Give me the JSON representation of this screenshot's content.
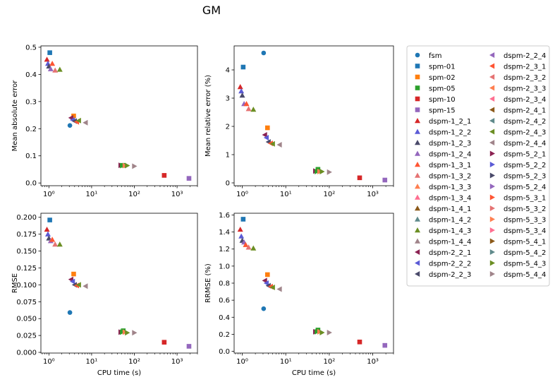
{
  "figure_title": "GM",
  "chart_data": [
    {
      "type": "scatter",
      "xlabel": "",
      "ylabel": "Mean absolute error",
      "xscale": "log",
      "xlim": [
        0.65,
        3000
      ],
      "ylim": [
        -0.01,
        0.505
      ],
      "yticks": [
        "0.0",
        "0.1",
        "0.2",
        "0.3",
        "0.4",
        "0.5"
      ],
      "ytick_values": [
        0,
        0.1,
        0.2,
        0.3,
        0.4,
        0.5
      ],
      "xticks": [
        "10⁰",
        "10¹",
        "10²",
        "10³"
      ],
      "series": [
        {
          "name": "fsm",
          "points": [
            [
              3.1,
              0.212
            ]
          ]
        },
        {
          "name": "spm-01",
          "points": [
            [
              1.05,
              0.48
            ]
          ]
        },
        {
          "name": "spm-02",
          "points": [
            [
              3.8,
              0.247
            ]
          ]
        },
        {
          "name": "spm-05",
          "points": [
            [
              55,
              0.065
            ]
          ]
        },
        {
          "name": "spm-10",
          "points": [
            [
              500,
              0.028
            ]
          ]
        },
        {
          "name": "spm-15",
          "points": [
            [
              1900,
              0.017
            ]
          ]
        },
        {
          "name": "dspm-1",
          "points": [
            [
              0.9,
              0.455
            ],
            [
              0.95,
              0.44
            ],
            [
              1.0,
              0.43
            ],
            [
              1.1,
              0.42
            ],
            [
              1.2,
              0.44
            ],
            [
              1.4,
              0.415
            ],
            [
              1.8,
              0.418
            ]
          ]
        },
        {
          "name": "dspm-2",
          "points": [
            [
              3.3,
              0.24
            ],
            [
              3.6,
              0.232
            ],
            [
              4.0,
              0.228
            ],
            [
              4.5,
              0.225
            ],
            [
              5.0,
              0.23
            ],
            [
              7.2,
              0.222
            ]
          ]
        },
        {
          "name": "dspm-5",
          "points": [
            [
              48,
              0.065
            ],
            [
              52,
              0.064
            ],
            [
              60,
              0.064
            ],
            [
              68,
              0.064
            ],
            [
              100,
              0.062
            ]
          ]
        }
      ]
    },
    {
      "type": "scatter",
      "xlabel": "",
      "ylabel": "Mean relative error (%)",
      "xscale": "log",
      "xlim": [
        0.65,
        3000
      ],
      "ylim": [
        -0.1,
        4.85
      ],
      "yticks": [
        "0",
        "1",
        "2",
        "3",
        "4"
      ],
      "ytick_values": [
        0,
        1,
        2,
        3,
        4
      ],
      "xticks": [
        "10⁰",
        "10¹",
        "10²",
        "10³"
      ],
      "series": [
        {
          "name": "fsm",
          "points": [
            [
              3.1,
              4.6
            ]
          ]
        },
        {
          "name": "spm-01",
          "points": [
            [
              1.05,
              4.1
            ]
          ]
        },
        {
          "name": "spm-02",
          "points": [
            [
              3.8,
              1.95
            ]
          ]
        },
        {
          "name": "spm-05",
          "points": [
            [
              55,
              0.48
            ]
          ]
        },
        {
          "name": "spm-10",
          "points": [
            [
              500,
              0.18
            ]
          ]
        },
        {
          "name": "spm-15",
          "points": [
            [
              1900,
              0.1
            ]
          ]
        },
        {
          "name": "dspm-1",
          "points": [
            [
              0.9,
              3.4
            ],
            [
              0.95,
              3.25
            ],
            [
              1.0,
              3.1
            ],
            [
              1.1,
              2.8
            ],
            [
              1.25,
              2.8
            ],
            [
              1.4,
              2.62
            ],
            [
              1.8,
              2.6
            ]
          ]
        },
        {
          "name": "dspm-2",
          "points": [
            [
              3.3,
              1.7
            ],
            [
              3.6,
              1.6
            ],
            [
              4.0,
              1.45
            ],
            [
              4.5,
              1.4
            ],
            [
              5.0,
              1.38
            ],
            [
              7.2,
              1.35
            ]
          ]
        },
        {
          "name": "dspm-5",
          "points": [
            [
              48,
              0.42
            ],
            [
              52,
              0.4
            ],
            [
              60,
              0.4
            ],
            [
              68,
              0.4
            ],
            [
              100,
              0.38
            ]
          ]
        }
      ]
    },
    {
      "type": "scatter",
      "xlabel": "CPU time (s)",
      "ylabel": "RMSE",
      "xscale": "log",
      "xlim": [
        0.65,
        3000
      ],
      "ylim": [
        -0.001,
        0.206
      ],
      "yticks": [
        "0.000",
        "0.025",
        "0.050",
        "0.075",
        "0.100",
        "0.125",
        "0.150",
        "0.175",
        "0.200"
      ],
      "ytick_values": [
        0,
        0.025,
        0.05,
        0.075,
        0.1,
        0.125,
        0.15,
        0.175,
        0.2
      ],
      "xticks": [
        "10⁰",
        "10¹",
        "10²",
        "10³"
      ],
      "series": [
        {
          "name": "fsm",
          "points": [
            [
              3.1,
              0.059
            ]
          ]
        },
        {
          "name": "spm-01",
          "points": [
            [
              1.05,
              0.196
            ]
          ]
        },
        {
          "name": "spm-02",
          "points": [
            [
              3.8,
              0.116
            ]
          ]
        },
        {
          "name": "spm-05",
          "points": [
            [
              55,
              0.032
            ]
          ]
        },
        {
          "name": "spm-10",
          "points": [
            [
              500,
              0.015
            ]
          ]
        },
        {
          "name": "spm-15",
          "points": [
            [
              1900,
              0.009
            ]
          ]
        },
        {
          "name": "dspm-1",
          "points": [
            [
              0.9,
              0.182
            ],
            [
              0.95,
              0.175
            ],
            [
              1.0,
              0.169
            ],
            [
              1.1,
              0.165
            ],
            [
              1.2,
              0.167
            ],
            [
              1.4,
              0.16
            ],
            [
              1.8,
              0.16
            ]
          ]
        },
        {
          "name": "dspm-2",
          "points": [
            [
              3.3,
              0.108
            ],
            [
              3.6,
              0.105
            ],
            [
              4.0,
              0.1
            ],
            [
              4.5,
              0.099
            ],
            [
              5.0,
              0.1
            ],
            [
              7.2,
              0.098
            ]
          ]
        },
        {
          "name": "dspm-5",
          "points": [
            [
              48,
              0.03
            ],
            [
              52,
              0.03
            ],
            [
              60,
              0.03
            ],
            [
              68,
              0.029
            ],
            [
              100,
              0.029
            ]
          ]
        }
      ]
    },
    {
      "type": "scatter",
      "xlabel": "CPU time (s)",
      "ylabel": "RRMSE (%)",
      "xscale": "log",
      "xlim": [
        0.65,
        3000
      ],
      "ylim": [
        -0.02,
        1.62
      ],
      "yticks": [
        "0.0",
        "0.2",
        "0.4",
        "0.6",
        "0.8",
        "1.0",
        "1.2",
        "1.4",
        "1.6"
      ],
      "ytick_values": [
        0,
        0.2,
        0.4,
        0.6,
        0.8,
        1.0,
        1.2,
        1.4,
        1.6
      ],
      "xticks": [
        "10⁰",
        "10¹",
        "10²",
        "10³"
      ],
      "series": [
        {
          "name": "fsm",
          "points": [
            [
              3.1,
              0.5
            ]
          ]
        },
        {
          "name": "spm-01",
          "points": [
            [
              1.05,
              1.55
            ]
          ]
        },
        {
          "name": "spm-02",
          "points": [
            [
              3.8,
              0.9
            ]
          ]
        },
        {
          "name": "spm-05",
          "points": [
            [
              55,
              0.25
            ]
          ]
        },
        {
          "name": "spm-10",
          "points": [
            [
              500,
              0.11
            ]
          ]
        },
        {
          "name": "spm-15",
          "points": [
            [
              1900,
              0.07
            ]
          ]
        },
        {
          "name": "dspm-1",
          "points": [
            [
              0.9,
              1.43
            ],
            [
              0.95,
              1.35
            ],
            [
              1.0,
              1.3
            ],
            [
              1.1,
              1.28
            ],
            [
              1.2,
              1.25
            ],
            [
              1.4,
              1.22
            ],
            [
              1.8,
              1.21
            ]
          ]
        },
        {
          "name": "dspm-2",
          "points": [
            [
              3.3,
              0.83
            ],
            [
              3.6,
              0.8
            ],
            [
              4.0,
              0.77
            ],
            [
              4.5,
              0.76
            ],
            [
              5.0,
              0.75
            ],
            [
              7.2,
              0.73
            ]
          ]
        },
        {
          "name": "dspm-5",
          "points": [
            [
              48,
              0.23
            ],
            [
              52,
              0.23
            ],
            [
              60,
              0.23
            ],
            [
              68,
              0.22
            ],
            [
              100,
              0.22
            ]
          ]
        }
      ]
    }
  ],
  "legend": {
    "placement": "right",
    "entries": [
      {
        "label": "fsm",
        "marker": "circle",
        "color": "#1f77b4"
      },
      {
        "label": "spm-01",
        "marker": "square",
        "color": "#1f77b4"
      },
      {
        "label": "spm-02",
        "marker": "square",
        "color": "#ff7f0e"
      },
      {
        "label": "spm-05",
        "marker": "square",
        "color": "#2ca02c"
      },
      {
        "label": "spm-10",
        "marker": "square",
        "color": "#d62728"
      },
      {
        "label": "spm-15",
        "marker": "square",
        "color": "#9467bd"
      },
      {
        "label": "dspm-1_2_1",
        "marker": "tri-up",
        "color": "#d62728"
      },
      {
        "label": "dspm-1_2_2",
        "marker": "tri-up",
        "color": "#5b5bd6"
      },
      {
        "label": "dspm-1_2_3",
        "marker": "tri-up",
        "color": "#4a4a6a"
      },
      {
        "label": "dspm-1_2_4",
        "marker": "tri-up",
        "color": "#9467bd"
      },
      {
        "label": "dspm-1_3_1",
        "marker": "tri-up",
        "color": "#ff5533"
      },
      {
        "label": "dspm-1_3_2",
        "marker": "tri-up",
        "color": "#e57373"
      },
      {
        "label": "dspm-1_3_3",
        "marker": "tri-up",
        "color": "#ff7f50"
      },
      {
        "label": "dspm-1_3_4",
        "marker": "tri-up",
        "color": "#ff6f91"
      },
      {
        "label": "dspm-1_4_1",
        "marker": "tri-up",
        "color": "#8c5a1a"
      },
      {
        "label": "dspm-1_4_2",
        "marker": "tri-up",
        "color": "#5f8a8b"
      },
      {
        "label": "dspm-1_4_3",
        "marker": "tri-up",
        "color": "#6b8e23"
      },
      {
        "label": "dspm-1_4_4",
        "marker": "tri-up",
        "color": "#a0848a"
      },
      {
        "label": "dspm-2_2_1",
        "marker": "tri-left",
        "color": "#8b2252"
      },
      {
        "label": "dspm-2_2_2",
        "marker": "tri-left",
        "color": "#5b5bd6"
      },
      {
        "label": "dspm-2_2_3",
        "marker": "tri-left",
        "color": "#4a4a6a"
      },
      {
        "label": "dspm-2_2_4",
        "marker": "tri-left",
        "color": "#9467bd"
      },
      {
        "label": "dspm-2_3_1",
        "marker": "tri-left",
        "color": "#ff5533"
      },
      {
        "label": "dspm-2_3_2",
        "marker": "tri-left",
        "color": "#e57373"
      },
      {
        "label": "dspm-2_3_3",
        "marker": "tri-left",
        "color": "#ff7f50"
      },
      {
        "label": "dspm-2_3_4",
        "marker": "tri-left",
        "color": "#ff6f91"
      },
      {
        "label": "dspm-2_4_1",
        "marker": "tri-left",
        "color": "#8c5a1a"
      },
      {
        "label": "dspm-2_4_2",
        "marker": "tri-left",
        "color": "#5f8a8b"
      },
      {
        "label": "dspm-2_4_3",
        "marker": "tri-left",
        "color": "#6b8e23"
      },
      {
        "label": "dspm-2_4_4",
        "marker": "tri-left",
        "color": "#a0848a"
      },
      {
        "label": "dspm-5_2_1",
        "marker": "tri-right",
        "color": "#8b2252"
      },
      {
        "label": "dspm-5_2_2",
        "marker": "tri-right",
        "color": "#5b5bd6"
      },
      {
        "label": "dspm-5_2_3",
        "marker": "tri-right",
        "color": "#4a4a6a"
      },
      {
        "label": "dspm-5_2_4",
        "marker": "tri-right",
        "color": "#9467bd"
      },
      {
        "label": "dspm-5_3_1",
        "marker": "tri-right",
        "color": "#ff5533"
      },
      {
        "label": "dspm-5_3_2",
        "marker": "tri-right",
        "color": "#e57373"
      },
      {
        "label": "dspm-5_3_3",
        "marker": "tri-right",
        "color": "#ff7f50"
      },
      {
        "label": "dspm-5_3_4",
        "marker": "tri-right",
        "color": "#ff6f91"
      },
      {
        "label": "dspm-5_4_1",
        "marker": "tri-right",
        "color": "#8c5a1a"
      },
      {
        "label": "dspm-5_4_2",
        "marker": "tri-right",
        "color": "#5f8a8b"
      },
      {
        "label": "dspm-5_4_3",
        "marker": "tri-right",
        "color": "#6b8e23"
      },
      {
        "label": "dspm-5_4_4",
        "marker": "tri-right",
        "color": "#a0848a"
      }
    ]
  }
}
